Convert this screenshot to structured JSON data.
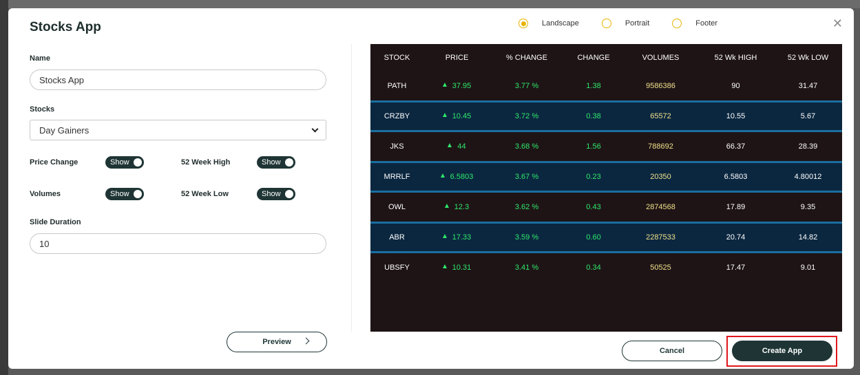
{
  "dialog": {
    "title": "Stocks App"
  },
  "orientation": {
    "options": [
      {
        "label": "Landscape",
        "checked": true
      },
      {
        "label": "Portrait",
        "checked": false
      },
      {
        "label": "Footer",
        "checked": false
      }
    ]
  },
  "form": {
    "name_label": "Name",
    "name_value": "Stocks App",
    "stocks_label": "Stocks",
    "stocks_value": "Day Gainers",
    "price_change_label": "Price Change",
    "price_change_toggle": "Show",
    "week_high_label": "52 Week High",
    "week_high_toggle": "Show",
    "volumes_label": "Volumes",
    "volumes_toggle": "Show",
    "week_low_label": "52 Week Low",
    "week_low_toggle": "Show",
    "slide_duration_label": "Slide Duration",
    "slide_duration_value": "10"
  },
  "buttons": {
    "preview": "Preview",
    "cancel": "Cancel",
    "create": "Create App"
  },
  "colors": {
    "accent": "#e8b400",
    "dark": "#1f3535",
    "up": "#2ee86a",
    "highlight": "#e0161b"
  },
  "table": {
    "headers": [
      "STOCK",
      "PRICE",
      "% CHANGE",
      "CHANGE",
      "VOLUMES",
      "52 Wk HIGH",
      "52 Wk LOW"
    ],
    "rows": [
      [
        "PATH",
        "37.95",
        "3.77 %",
        "1.38",
        "9586386",
        "90",
        "31.47"
      ],
      [
        "CRZBY",
        "10.45",
        "3.72 %",
        "0.38",
        "65572",
        "10.55",
        "5.67"
      ],
      [
        "JKS",
        "44",
        "3.68 %",
        "1.56",
        "788692",
        "66.37",
        "28.39"
      ],
      [
        "MRRLF",
        "6.5803",
        "3.67 %",
        "0.23",
        "20350",
        "6.5803",
        "4.80012"
      ],
      [
        "OWL",
        "12.3",
        "3.62 %",
        "0.43",
        "2874568",
        "17.89",
        "9.35"
      ],
      [
        "ABR",
        "17.33",
        "3.59 %",
        "0.60",
        "2287533",
        "20.74",
        "14.82"
      ],
      [
        "UBSFY",
        "10.31",
        "3.41 %",
        "0.34",
        "50525",
        "17.47",
        "9.01"
      ]
    ]
  }
}
